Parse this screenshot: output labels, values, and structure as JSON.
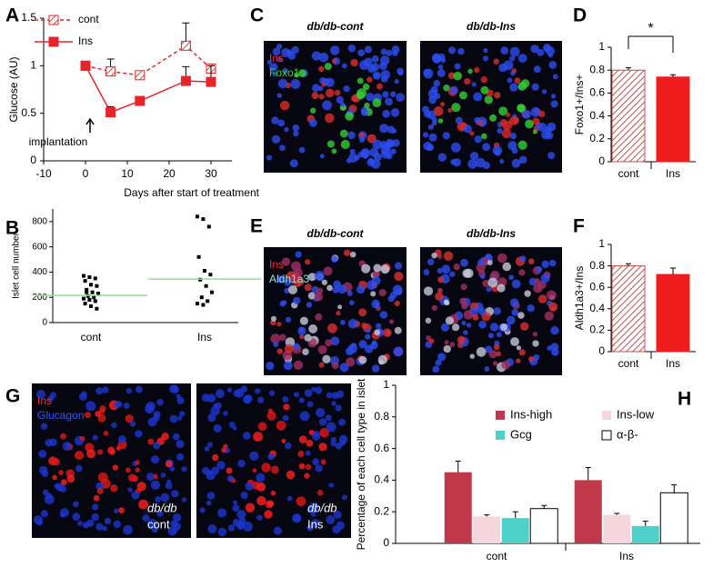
{
  "chart_data": [
    {
      "type": "line",
      "panel": "A",
      "x": [
        0,
        6,
        13,
        24,
        30
      ],
      "xlim": [
        -10,
        35
      ],
      "xticks": [
        -10,
        0,
        10,
        20,
        30
      ],
      "ylim": [
        0,
        1.5
      ],
      "yticks": [
        0,
        0.5,
        1,
        1.5
      ],
      "x_label": "Days after start of treatment",
      "y_label": "Glucose (AU)",
      "annotation": "implantation",
      "series": [
        {
          "name": "cont",
          "color": "#e8242a",
          "linestyle": "dashed",
          "hatch": true,
          "values": [
            1,
            0.94,
            0.9,
            1.21,
            0.97
          ],
          "errors": [
            null,
            0.13,
            0.03,
            0.24,
            0.03
          ]
        },
        {
          "name": "Ins",
          "color": "#e8242a",
          "linestyle": "solid",
          "hatch": false,
          "values": [
            1,
            0.51,
            0.63,
            0.84,
            0.83
          ],
          "errors": [
            null,
            0.06,
            0.02,
            0.15,
            0.17
          ]
        }
      ]
    },
    {
      "type": "strip",
      "panel": "B",
      "categories": [
        "cont",
        "Ins"
      ],
      "y_label": "Islet cell number",
      "ylim": [
        0,
        900
      ],
      "yticks": [
        0,
        200,
        400,
        600,
        800
      ],
      "points": [
        [
          370,
          360,
          350,
          330,
          300,
          290,
          260,
          240,
          230,
          210,
          200,
          190,
          180,
          170,
          150,
          130,
          110,
          240
        ],
        [
          840,
          820,
          760,
          520,
          410,
          380,
          340,
          290,
          240,
          200,
          170,
          150,
          140
        ]
      ],
      "means": [
        215,
        345
      ],
      "mean_color": "#8fe08f",
      "color": "#000000"
    },
    {
      "type": "bar",
      "panel": "D",
      "categories": [
        "cont",
        "Ins"
      ],
      "values": [
        0.8,
        0.74
      ],
      "errors": [
        0.02,
        0.02
      ],
      "y_label": "Foxo1+/Ins+",
      "ylim": [
        0,
        1
      ],
      "yticks": [
        0,
        0.2,
        0.4,
        0.6,
        0.8,
        1
      ],
      "colors": [
        "#c0504d",
        "#ee1c1c"
      ],
      "hatch": [
        true,
        false
      ],
      "significance": "*"
    },
    {
      "type": "bar",
      "panel": "F",
      "categories": [
        "cont",
        "Ins"
      ],
      "values": [
        0.8,
        0.72
      ],
      "errors": [
        0.02,
        0.06
      ],
      "y_label": "Aldh1a3+/Ins",
      "ylim": [
        0,
        1
      ],
      "yticks": [
        0,
        0.2,
        0.4,
        0.6,
        0.8,
        1
      ],
      "colors": [
        "#c0504d",
        "#ee1c1c"
      ],
      "hatch": [
        true,
        false
      ]
    },
    {
      "type": "bar",
      "panel": "H",
      "categories": [
        "cont",
        "Ins"
      ],
      "y_label": "Percentage of each cell type in islet",
      "ylim": [
        0,
        1
      ],
      "yticks": [
        0,
        0.2,
        0.4,
        0.6,
        0.8,
        1
      ],
      "series": [
        {
          "name": "Ins-high",
          "color": "#c0394b",
          "values": [
            0.45,
            0.4
          ],
          "errors": [
            0.07,
            0.08
          ]
        },
        {
          "name": "Ins-low",
          "color": "#f6d6dd",
          "values": [
            0.17,
            0.18
          ],
          "errors": [
            0.01,
            0.01
          ]
        },
        {
          "name": "Gcg",
          "color": "#4fd0c8",
          "values": [
            0.16,
            0.11
          ],
          "errors": [
            0.04,
            0.03
          ]
        },
        {
          "name": "α-β-",
          "color": "#ffffff",
          "values": [
            0.22,
            0.32
          ],
          "errors": [
            0.02,
            0.05
          ]
        }
      ]
    }
  ],
  "images": [
    {
      "panel": "C",
      "titles": [
        "db/db-cont",
        "db/db-Ins"
      ],
      "channels": [
        {
          "name": "Ins",
          "color": "#ff2a2a"
        },
        {
          "name": "Foxo1",
          "color": "#33dd33"
        }
      ]
    },
    {
      "panel": "E",
      "titles": [
        "db/db-cont",
        "db/db-Ins"
      ],
      "channels": [
        {
          "name": "Ins",
          "color": "#ff2a2a"
        },
        {
          "name": "Aldh1a3",
          "color": "#8fe6e6"
        }
      ]
    },
    {
      "panel": "G",
      "captions": [
        [
          "db/db",
          "cont"
        ],
        [
          "db/db",
          "Ins"
        ]
      ],
      "channels": [
        {
          "name": "Ins",
          "color": "#ff2a2a"
        },
        {
          "name": "Glucagon",
          "color": "#3355ff"
        }
      ]
    }
  ]
}
